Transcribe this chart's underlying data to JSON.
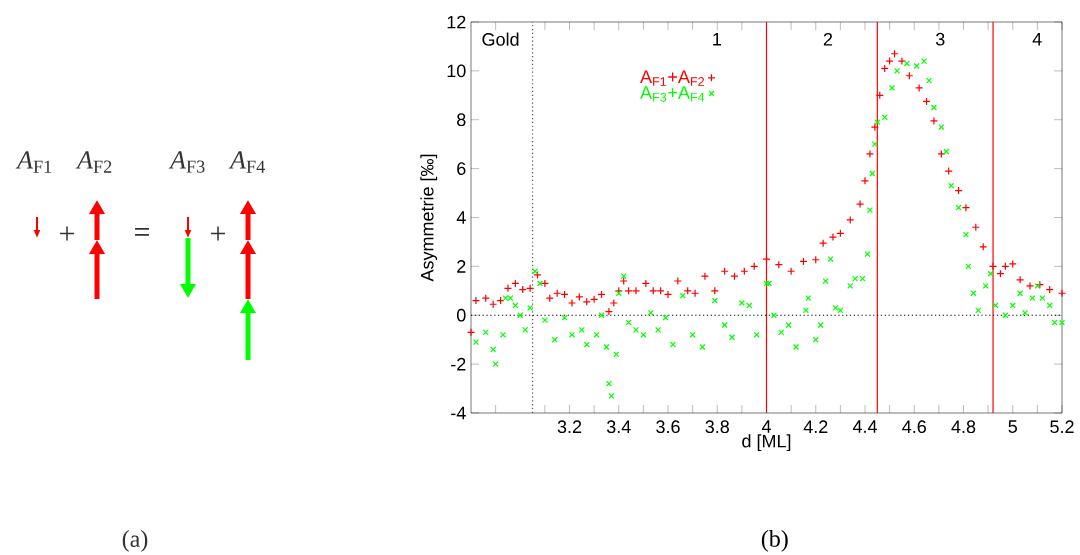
{
  "chart_data": [
    {
      "type": "other",
      "annotations": [
        "*A*$_{F1}$",
        "*A*$_{F2}$",
        "*A*$_{F3}$",
        "*A*$_{F4}$",
        "+",
        "=",
        "+",
        "(a)"
      ]
    },
    {
      "type": "scatter",
      "xlabel": "d [ML]",
      "ylabel": "Asymmetrie [‰]",
      "xlim": [
        2.8,
        5.2
      ],
      "ylim": [
        -4,
        12
      ],
      "xticks": [
        {
          "value": 2.9,
          "label": null
        },
        {
          "value": 3.1,
          "label": null
        },
        3.2,
        {
          "value": 3.3,
          "label": null
        },
        3.4,
        {
          "value": 3.5,
          "label": null
        },
        3.6,
        {
          "value": 3.7,
          "label": null
        },
        3.8,
        {
          "value": 3.9,
          "label": null
        },
        4,
        {
          "value": 4.1,
          "label": null
        },
        4.2,
        {
          "value": 4.3,
          "label": null
        },
        4.4,
        {
          "value": 4.5,
          "label": null
        },
        4.6,
        {
          "value": 4.7,
          "label": null
        },
        4.8,
        {
          "value": 4.9,
          "label": null
        },
        5,
        {
          "value": 5.1,
          "label": null
        },
        5.2
      ],
      "yticks": [
        -4,
        -2,
        0,
        2,
        4,
        6,
        8,
        10,
        12
      ],
      "legend": "top left",
      "grid": false,
      "series": [
        {
          "name": "A$_{F1}$+A$_{F2}$",
          "color": "#ff0000",
          "marker": "plus",
          "x": [
            2.8,
            2.82,
            2.86,
            2.89,
            2.92,
            2.95,
            2.98,
            3.01,
            3.04,
            3.07,
            3.1,
            3.12,
            3.15,
            3.18,
            3.21,
            3.24,
            3.27,
            3.3,
            3.33,
            3.36,
            3.38,
            3.4,
            3.42,
            3.44,
            3.47,
            3.51,
            3.54,
            3.57,
            3.6,
            3.64,
            3.68,
            3.71,
            3.75,
            3.79,
            3.83,
            3.87,
            3.91,
            3.95,
            4.0,
            4.05,
            4.1,
            4.15,
            4.2,
            4.23,
            4.27,
            4.3,
            4.34,
            4.38,
            4.4,
            4.42,
            4.44,
            4.46,
            4.48,
            4.5,
            4.52,
            4.55,
            4.58,
            4.62,
            4.65,
            4.68,
            4.71,
            4.74,
            4.78,
            4.81,
            4.85,
            4.88,
            4.92,
            4.95,
            4.97,
            5.0,
            5.03,
            5.07,
            5.11,
            5.15,
            5.2
          ],
          "values": [
            -0.7,
            0.6,
            0.7,
            0.45,
            0.6,
            1.1,
            1.3,
            1.05,
            1.1,
            1.65,
            1.3,
            0.7,
            0.9,
            0.85,
            0.5,
            0.75,
            0.55,
            0.65,
            0.85,
            0.15,
            0.5,
            1.0,
            1.4,
            1.0,
            1.0,
            1.3,
            1.0,
            1.0,
            0.85,
            1.4,
            1.0,
            0.9,
            1.6,
            1.0,
            1.8,
            1.6,
            1.8,
            2.0,
            2.3,
            2.07,
            1.8,
            2.2,
            2.27,
            2.95,
            3.2,
            3.35,
            3.9,
            4.55,
            5.5,
            6.6,
            7.7,
            9.0,
            10.1,
            10.4,
            10.7,
            10.4,
            9.8,
            9.3,
            8.75,
            7.95,
            6.6,
            5.9,
            5.1,
            4.4,
            3.6,
            2.8,
            2.0,
            1.7,
            2.0,
            2.1,
            1.45,
            1.2,
            1.25,
            1.05,
            0.9
          ]
        },
        {
          "name": "A$_{F3}$+A$_{F4}$",
          "color": "#00ff00",
          "marker": "cross",
          "x": [
            2.82,
            2.86,
            2.89,
            2.9,
            2.93,
            2.94,
            2.96,
            2.98,
            3.0,
            3.02,
            3.04,
            3.06,
            3.08,
            3.1,
            3.14,
            3.18,
            3.21,
            3.25,
            3.27,
            3.31,
            3.33,
            3.35,
            3.36,
            3.37,
            3.39,
            3.4,
            3.42,
            3.44,
            3.47,
            3.5,
            3.53,
            3.56,
            3.59,
            3.62,
            3.66,
            3.7,
            3.74,
            3.79,
            3.83,
            3.86,
            3.9,
            3.93,
            3.96,
            4.0,
            4.01,
            4.03,
            4.06,
            4.09,
            4.12,
            4.16,
            4.17,
            4.2,
            4.22,
            4.24,
            4.26,
            4.28,
            4.3,
            4.34,
            4.36,
            4.39,
            4.41,
            4.42,
            4.43,
            4.44,
            4.45,
            4.48,
            4.51,
            4.53,
            4.57,
            4.61,
            4.64,
            4.66,
            4.68,
            4.71,
            4.73,
            4.75,
            4.78,
            4.81,
            4.82,
            4.84,
            4.86,
            4.89,
            4.91,
            4.93,
            4.97,
            5.0,
            5.03,
            5.05,
            5.08,
            5.1,
            5.12,
            5.15,
            5.17,
            5.2
          ],
          "values": [
            -1.1,
            -0.7,
            -1.4,
            -2.0,
            -0.8,
            0.7,
            0.7,
            0.4,
            0.0,
            -0.6,
            0.3,
            1.8,
            1.3,
            -0.2,
            -1.0,
            -0.1,
            -0.8,
            -0.6,
            -1.2,
            -0.8,
            0.0,
            -1.3,
            -2.8,
            -3.3,
            -1.6,
            0.9,
            1.6,
            -0.3,
            -0.6,
            -0.8,
            0.1,
            -0.6,
            -0.1,
            -1.2,
            0.8,
            -0.8,
            -1.3,
            0.6,
            -0.4,
            -0.9,
            0.5,
            0.4,
            -0.8,
            1.3,
            1.3,
            0.0,
            -0.7,
            -0.4,
            -1.3,
            0.2,
            0.7,
            -1.0,
            -0.4,
            1.4,
            2.3,
            0.3,
            0.2,
            1.2,
            1.5,
            1.5,
            2.5,
            4.3,
            5.8,
            7.0,
            7.9,
            8.1,
            9.3,
            10.0,
            10.3,
            10.2,
            10.4,
            9.6,
            8.5,
            7.7,
            6.7,
            5.3,
            4.4,
            3.3,
            2.0,
            0.9,
            0.2,
            1.2,
            1.7,
            0.4,
            0.0,
            0.4,
            0.9,
            0.1,
            0.7,
            1.2,
            0.7,
            0.4,
            -0.3,
            -0.3
          ]
        }
      ],
      "ref_lines": [
        {
          "axis": "x",
          "value": 3.05,
          "color": "#555555",
          "line_style": "dotted"
        },
        {
          "axis": "x",
          "value": 4.0,
          "color": "#ff0000",
          "line_style": "solid"
        },
        {
          "axis": "x",
          "value": 4.45,
          "color": "#ff0000",
          "line_style": "solid"
        },
        {
          "axis": "x",
          "value": 4.92,
          "color": "#ff0000",
          "line_style": "solid"
        },
        {
          "axis": "y",
          "value": 0,
          "color": "#000000",
          "line_style": "dotted"
        }
      ],
      "annotations": [
        "Gold",
        "1",
        "2",
        "3",
        "4",
        "(b)"
      ]
    }
  ]
}
